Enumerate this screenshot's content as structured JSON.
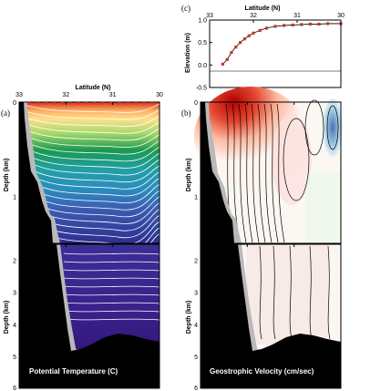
{
  "figure": {
    "panel_a": "(a)",
    "panel_b": "(b)",
    "panel_c": "(c)"
  },
  "chart_data": [
    {
      "type": "line",
      "panel": "(c)",
      "xlabel": "Latitude (N)",
      "ylabel": "Elevation (m)",
      "xlim": [
        33,
        30
      ],
      "ylim": [
        -0.5,
        1.0
      ],
      "x_ticks": [
        "33",
        "32",
        "31",
        "30"
      ],
      "y_ticks": [
        "-0.5",
        "0.0",
        "0.5",
        "1.0"
      ],
      "x": [
        32.7,
        32.6,
        32.5,
        32.4,
        32.3,
        32.2,
        32.1,
        32.0,
        31.85,
        31.7,
        31.5,
        31.3,
        31.1,
        30.9,
        30.7,
        30.5,
        30.3,
        30.0
      ],
      "y": [
        0.02,
        0.12,
        0.28,
        0.4,
        0.5,
        0.58,
        0.65,
        0.71,
        0.77,
        0.82,
        0.86,
        0.88,
        0.89,
        0.9,
        0.91,
        0.91,
        0.92,
        0.92
      ],
      "marker_color": "#c0392b"
    },
    {
      "type": "heatmap",
      "panel": "(a)",
      "title": "Potential Temperature (C)",
      "xlabel": "Latitude (N)",
      "ylabel": "Depth (km)",
      "xlim": [
        33,
        30
      ],
      "upper_ylim_km": [
        0,
        1.5
      ],
      "lower_ylim_km": [
        1.5,
        6
      ],
      "x_ticks": [
        "33",
        "32",
        "31",
        "30"
      ],
      "upper_y_ticks": [
        "0",
        "1"
      ],
      "lower_y_ticks": [
        "2",
        "3",
        "4",
        "5",
        "6"
      ],
      "colormap": [
        "#d7301f",
        "#fc8d59",
        "#fee08b",
        "#a6d96a",
        "#1a9850",
        "#35b779",
        "#21a0a6",
        "#3b6db3",
        "#2c3e9b",
        "#3a1f8a",
        "#2b0f6e"
      ]
    },
    {
      "type": "heatmap",
      "panel": "(b)",
      "title": "Geostrophic Velocity (cm/sec)",
      "xlabel": "Latitude (N)",
      "ylabel": "Depth (km)",
      "xlim": [
        33,
        30
      ],
      "upper_ylim_km": [
        0,
        1.5
      ],
      "lower_ylim_km": [
        1.5,
        6
      ],
      "x_ticks": [
        "33",
        "32",
        "31",
        "30"
      ],
      "upper_y_ticks": [
        "0",
        "1"
      ],
      "lower_y_ticks": [
        "2",
        "3",
        "4",
        "5",
        "6"
      ],
      "colormap": [
        "#b30000",
        "#e34a33",
        "#fc9272",
        "#fde0dd",
        "#ffffff",
        "#e8f0f8",
        "#9ecae1",
        "#4a6fb5"
      ]
    }
  ]
}
